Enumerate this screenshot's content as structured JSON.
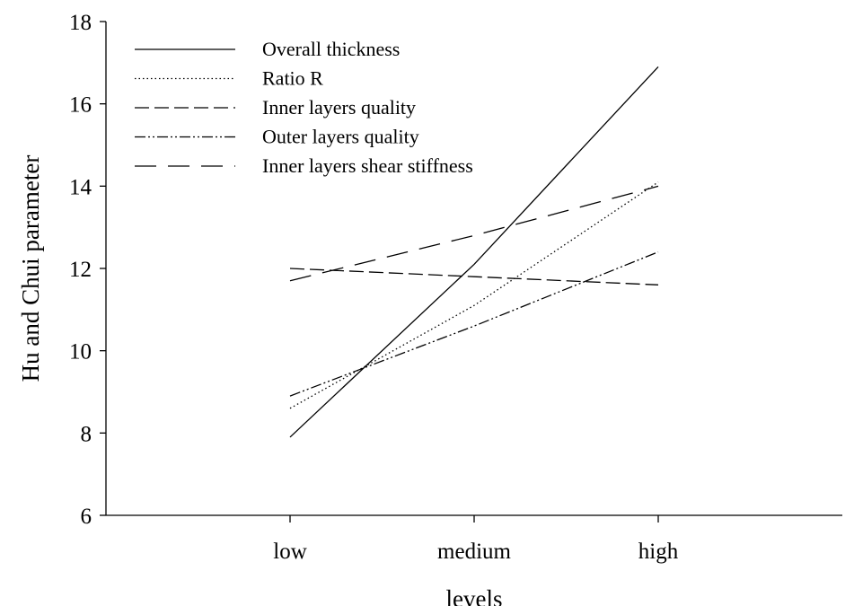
{
  "chart_data": {
    "type": "line",
    "categories": [
      "low",
      "medium",
      "high"
    ],
    "xlabel": "levels",
    "ylabel": "Hu and Chui parameter",
    "ylim": [
      6,
      18
    ],
    "yticks": [
      6,
      8,
      10,
      12,
      14,
      16,
      18
    ],
    "grid": false,
    "legend_position": "top-left",
    "series": [
      {
        "name": "Overall thickness",
        "values": [
          7.9,
          12.1,
          16.9
        ],
        "dash": "solid"
      },
      {
        "name": "Ratio R",
        "values": [
          8.6,
          11.1,
          14.1
        ],
        "dash": "dotted"
      },
      {
        "name": "Inner layers quality",
        "values": [
          12.0,
          11.8,
          11.6
        ],
        "dash": "dashed"
      },
      {
        "name": "Outer layers quality",
        "values": [
          8.9,
          10.6,
          12.4
        ],
        "dash": "dash-dot-dot"
      },
      {
        "name": "Inner layers shear stiffness",
        "values": [
          11.7,
          12.8,
          14.0
        ],
        "dash": "long-dash"
      }
    ]
  }
}
